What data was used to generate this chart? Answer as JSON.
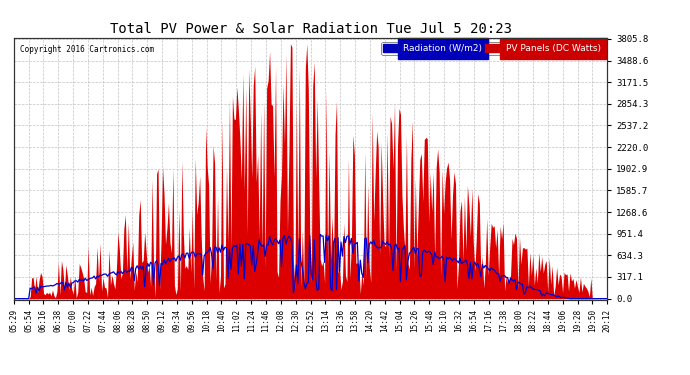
{
  "title": "Total PV Power & Solar Radiation Tue Jul 5 20:23",
  "copyright": "Copyright 2016 Cartronics.com",
  "yticks": [
    0.0,
    317.1,
    634.3,
    951.4,
    1268.6,
    1585.7,
    1902.9,
    2220.0,
    2537.2,
    2854.3,
    3171.5,
    3488.6,
    3805.8
  ],
  "ymax": 3805.8,
  "ymin": 0.0,
  "legend_radiation": "Radiation (W/m2)",
  "legend_pv": "PV Panels (DC Watts)",
  "bg_color": "#ffffff",
  "plot_bg_color": "#ffffff",
  "grid_color": "#cccccc",
  "pv_fill_color": "#dd0000",
  "radiation_line_color": "#0000cc",
  "title_fontsize": 11,
  "time_labels": [
    "05:29",
    "05:54",
    "06:16",
    "06:38",
    "07:00",
    "07:22",
    "07:44",
    "08:06",
    "08:28",
    "08:50",
    "09:12",
    "09:34",
    "09:56",
    "10:18",
    "10:40",
    "11:02",
    "11:24",
    "11:46",
    "12:08",
    "12:30",
    "12:52",
    "13:14",
    "13:36",
    "13:58",
    "14:20",
    "14:42",
    "15:04",
    "15:26",
    "15:48",
    "16:10",
    "16:32",
    "16:54",
    "17:16",
    "17:38",
    "18:00",
    "18:22",
    "18:44",
    "19:06",
    "19:28",
    "19:50",
    "20:12"
  ]
}
